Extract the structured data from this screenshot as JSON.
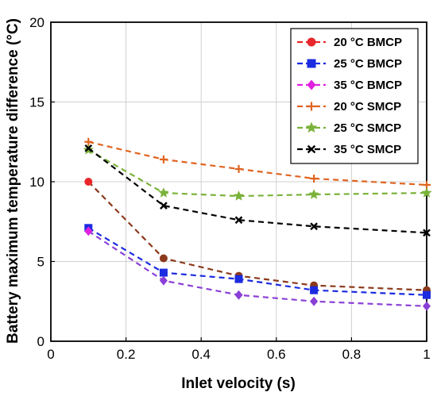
{
  "chart_data": {
    "type": "line",
    "title": "",
    "xlabel": "Inlet velocity (s)",
    "ylabel": "Battery maximum temperature difference (°C)",
    "xlim": [
      0,
      1
    ],
    "ylim": [
      0,
      20
    ],
    "x_ticks": [
      "0",
      "0.2",
      "0.4",
      "0.6",
      "0.8",
      "1"
    ],
    "y_ticks": [
      "0",
      "5",
      "10",
      "15",
      "20"
    ],
    "grid": true,
    "legend_position": "top-right",
    "x": [
      0.1,
      0.3,
      0.5,
      0.7,
      1.0
    ],
    "series": [
      {
        "name": "20 °C BMCP",
        "color": "#e8262b",
        "line_color": "#8b3a1c",
        "marker": "circle",
        "values": [
          10.0,
          5.2,
          4.1,
          3.5,
          3.2
        ]
      },
      {
        "name": "25 °C BMCP",
        "color": "#1b2be0",
        "line_color": "#1b2be0",
        "marker": "square",
        "values": [
          7.1,
          4.3,
          3.9,
          3.2,
          2.9
        ]
      },
      {
        "name": "35 °C BMCP",
        "color": "#e020e0",
        "line_color": "#8a3fd6",
        "marker": "diamond",
        "values": [
          6.9,
          3.8,
          2.9,
          2.5,
          2.2
        ]
      },
      {
        "name": "20 °C SMCP",
        "color": "#e06420",
        "line_color": "#e06420",
        "marker": "plus",
        "values": [
          12.5,
          11.4,
          10.8,
          10.2,
          9.8
        ]
      },
      {
        "name": "25 °C SMCP",
        "color": "#7ab23a",
        "line_color": "#7ab23a",
        "marker": "star",
        "values": [
          12.0,
          9.3,
          9.1,
          9.2,
          9.3
        ]
      },
      {
        "name": "35 °C SMCP",
        "color": "#000000",
        "line_color": "#000000",
        "marker": "x",
        "values": [
          12.1,
          8.5,
          7.6,
          7.2,
          6.8
        ]
      }
    ]
  }
}
